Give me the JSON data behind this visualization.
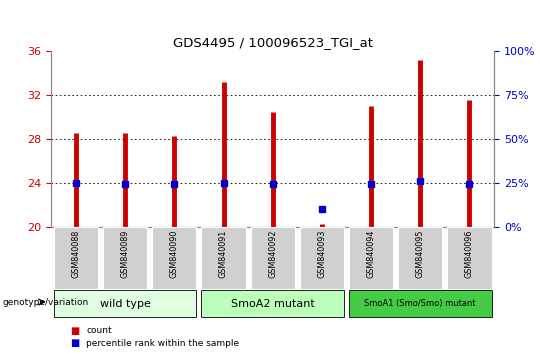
{
  "title": "GDS4495 / 100096523_TGI_at",
  "samples": [
    "GSM840088",
    "GSM840089",
    "GSM840090",
    "GSM840091",
    "GSM840092",
    "GSM840093",
    "GSM840094",
    "GSM840095",
    "GSM840096"
  ],
  "counts": [
    28.5,
    28.5,
    28.3,
    33.2,
    30.5,
    20.2,
    31.0,
    35.2,
    31.6
  ],
  "percentile_ranks": [
    25.0,
    24.5,
    24.5,
    25.0,
    24.5,
    10.0,
    24.5,
    26.0,
    24.5
  ],
  "ylim_left": [
    20,
    36
  ],
  "ylim_right": [
    0,
    100
  ],
  "yticks_left": [
    20,
    24,
    28,
    32,
    36
  ],
  "yticks_right": [
    0,
    25,
    50,
    75,
    100
  ],
  "groups": [
    {
      "label": "wild type",
      "start": 0,
      "end": 3,
      "color": "#e0ffe0"
    },
    {
      "label": "SmoA2 mutant",
      "start": 3,
      "end": 6,
      "color": "#bbffbb"
    },
    {
      "label": "SmoA1 (Smo/Smo) mutant",
      "start": 6,
      "end": 9,
      "color": "#44cc44"
    }
  ],
  "bar_color": "#cc0000",
  "dot_color": "#0000cc",
  "grid_color": "#000000",
  "tick_color_left": "#cc0000",
  "tick_color_right": "#0000cc",
  "sample_box_color": "#cccccc",
  "legend_items": [
    {
      "label": "count",
      "color": "#cc0000"
    },
    {
      "label": "percentile rank within the sample",
      "color": "#0000cc"
    }
  ]
}
